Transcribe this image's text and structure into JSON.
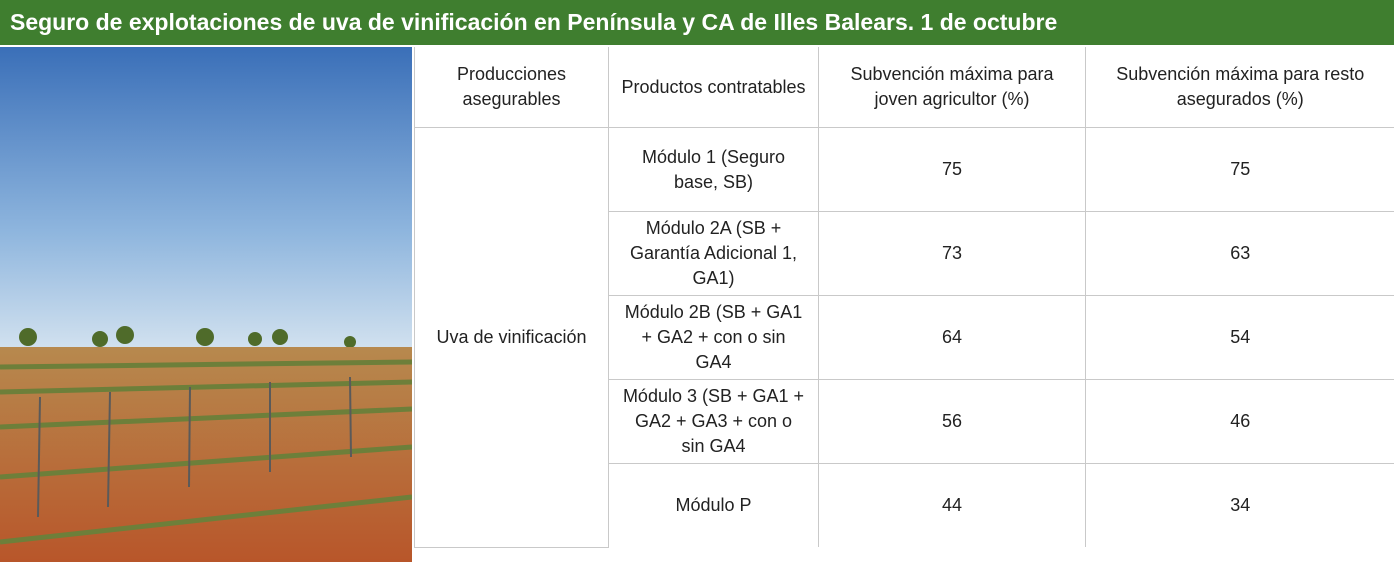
{
  "header": {
    "title": "Seguro de explotaciones de uva de vinificación en Península y CA de Illes Balears. 1 de octubre"
  },
  "table": {
    "columns": [
      "Producciones asegurables",
      "Productos contratables",
      "Subvención máxima para joven agricultor (%)",
      "Subvención máxima para resto asegurados (%)"
    ],
    "production": "Uva de vinificación",
    "rows": [
      [
        "Módulo 1 (Seguro base, SB)",
        75,
        75
      ],
      [
        "Módulo 2A (SB + Garantía Adicional 1, GA1)",
        73,
        63
      ],
      [
        "Módulo 2B (SB + GA1 + GA2 + con o sin GA4",
        64,
        54
      ],
      [
        "Módulo 3 (SB + GA1 + GA2 + GA3 + con o sin GA4",
        56,
        46
      ],
      [
        "Módulo P",
        44,
        34
      ]
    ]
  }
}
